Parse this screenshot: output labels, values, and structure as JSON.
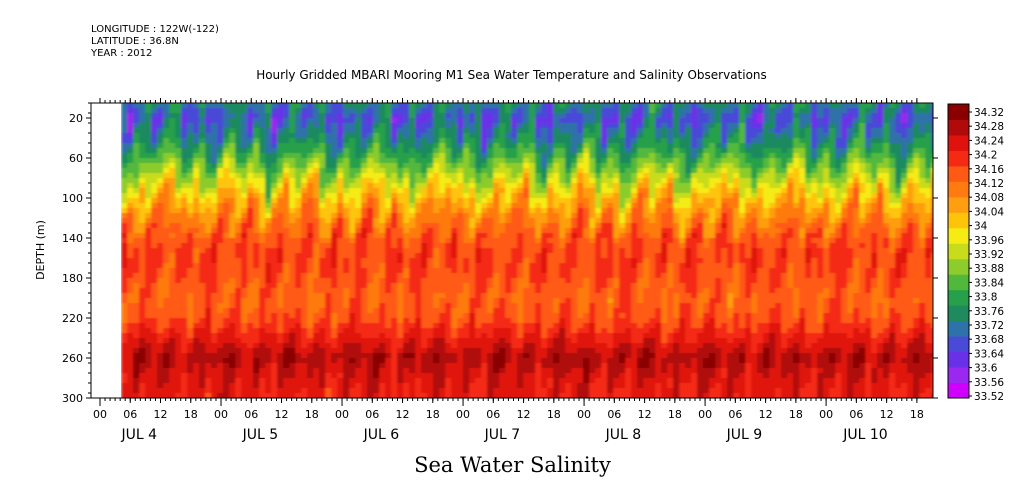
{
  "meta": {
    "longitude": "LONGITUDE : 122W(-122)",
    "latitude": "LATITUDE : 36.8N",
    "year": "YEAR : 2012"
  },
  "title": "Hourly Gridded MBARI Mooring M1 Sea Water Temperature and Salinity Observations",
  "variable_title": "Sea Water Salinity",
  "colors": {
    "scale": [
      "#d000ff",
      "#9a28f0",
      "#6a30e8",
      "#4a4ad8",
      "#2d72a8",
      "#1e8a5e",
      "#26a04a",
      "#52b83c",
      "#8ccc2c",
      "#c8dc1c",
      "#f5ec14",
      "#ffc40a",
      "#ff9e10",
      "#ff7a10",
      "#ff5a14",
      "#f52a12",
      "#e0120e",
      "#b00a0a",
      "#8a0000"
    ]
  },
  "chart_data": {
    "type": "heatmap",
    "title": "Hourly Gridded MBARI Mooring M1 Sea Water Temperature and Salinity Observations",
    "xlabel": "",
    "ylabel": "DEPTH (m)",
    "ylim": [
      300,
      5
    ],
    "y_ticks": [
      20,
      60,
      100,
      140,
      180,
      220,
      260,
      300
    ],
    "x_hour_ticks": [
      "00",
      "06",
      "12",
      "18",
      "00",
      "06",
      "12",
      "18",
      "00",
      "06",
      "12",
      "18",
      "00",
      "06",
      "12",
      "18",
      "00",
      "06",
      "12",
      "18",
      "00",
      "06",
      "12",
      "18",
      "00",
      "06",
      "12",
      "18"
    ],
    "x_day_labels": [
      "JUL 4",
      "JUL 5",
      "JUL 6",
      "JUL 7",
      "JUL 8",
      "JUL 9",
      "JUL 10"
    ],
    "data_start": "JUL 4 06",
    "colorbar_levels": [
      34.32,
      34.28,
      34.24,
      34.2,
      34.16,
      34.12,
      34.08,
      34.04,
      34,
      33.96,
      33.92,
      33.88,
      33.84,
      33.8,
      33.76,
      33.72,
      33.68,
      33.64,
      33.6,
      33.56,
      33.52
    ],
    "depth_profile": {
      "depth": [
        5,
        20,
        40,
        60,
        80,
        100,
        120,
        140,
        160,
        180,
        200,
        220,
        240,
        260,
        280,
        300
      ],
      "salinity": [
        33.74,
        33.68,
        33.74,
        33.82,
        33.92,
        34.02,
        34.08,
        34.14,
        34.16,
        34.14,
        34.12,
        34.14,
        34.2,
        34.26,
        34.22,
        34.2
      ]
    }
  }
}
